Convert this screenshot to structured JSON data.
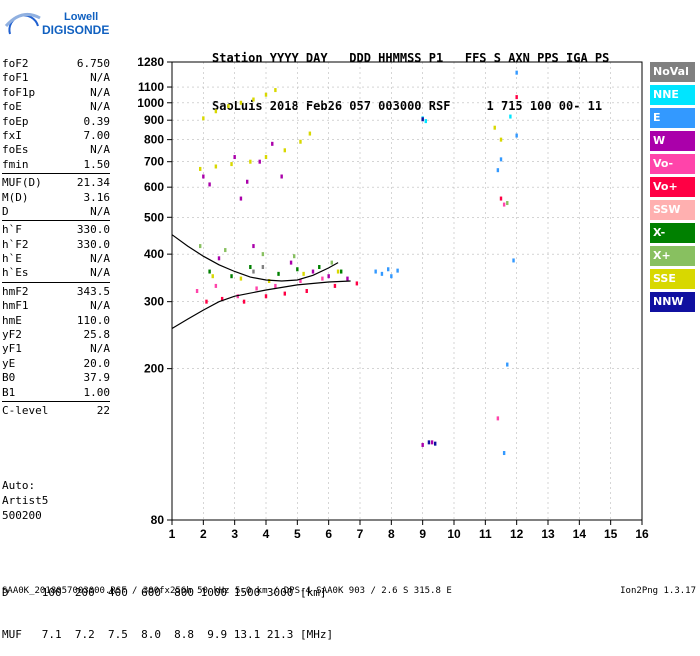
{
  "logo": {
    "top": "Lowell",
    "bottom": "DIGISONDE"
  },
  "header": {
    "line1": "Station YYYY DAY   DDD HHMMSS P1   FFS S AXN PPS IGA PS",
    "line2": "SaoLuis 2018 Feb26 057 003000 RSF     1 715 100 00- 11"
  },
  "params": [
    [
      {
        "k": "foF2",
        "v": "6.750"
      },
      {
        "k": "foF1",
        "v": "N/A"
      },
      {
        "k": "foF1p",
        "v": "N/A"
      },
      {
        "k": "foE",
        "v": "N/A"
      },
      {
        "k": "foEp",
        "v": "0.39"
      },
      {
        "k": "fxI",
        "v": "7.00"
      },
      {
        "k": "foEs",
        "v": "N/A"
      },
      {
        "k": "fmin",
        "v": "1.50"
      }
    ],
    [
      {
        "k": "MUF(D)",
        "v": "21.34"
      },
      {
        "k": "M(D)",
        "v": "3.16"
      },
      {
        "k": "D",
        "v": "N/A"
      }
    ],
    [
      {
        "k": "h`F",
        "v": "330.0"
      },
      {
        "k": "h`F2",
        "v": "330.0"
      },
      {
        "k": "h`E",
        "v": "N/A"
      },
      {
        "k": "h`Es",
        "v": "N/A"
      }
    ],
    [
      {
        "k": "hmF2",
        "v": "343.5"
      },
      {
        "k": "hmF1",
        "v": "N/A"
      },
      {
        "k": "hmE",
        "v": "110.0"
      },
      {
        "k": "yF2",
        "v": "25.8"
      },
      {
        "k": "yF1",
        "v": "N/A"
      },
      {
        "k": "yE",
        "v": "20.0"
      },
      {
        "k": "B0",
        "v": "37.9"
      },
      {
        "k": "B1",
        "v": "1.00"
      }
    ],
    [
      {
        "k": "C-level",
        "v": "22"
      }
    ]
  ],
  "auto": {
    "l1": "Auto:",
    "l2": "Artist5",
    "l3": "500200"
  },
  "legend": [
    {
      "label": "NoVal",
      "bg": "#808080",
      "fg": "#ffffff"
    },
    {
      "label": "NNE",
      "bg": "#00e5ff",
      "fg": "#ffffff"
    },
    {
      "label": "E",
      "bg": "#3399ff",
      "fg": "#ffffff"
    },
    {
      "label": "W",
      "bg": "#aa00aa",
      "fg": "#ffffff"
    },
    {
      "label": "Vo-",
      "bg": "#ff44aa",
      "fg": "#ffffff"
    },
    {
      "label": "Vo+",
      "bg": "#ff0044",
      "fg": "#ffffff"
    },
    {
      "label": "SSW",
      "bg": "#ffb0b0",
      "fg": "#ffffff"
    },
    {
      "label": "X-",
      "bg": "#008000",
      "fg": "#ffffff"
    },
    {
      "label": "X+",
      "bg": "#88c060",
      "fg": "#ffffff"
    },
    {
      "label": "SSE",
      "bg": "#d8d800",
      "fg": "#ffffff"
    },
    {
      "label": "NNW",
      "bg": "#1010a0",
      "fg": "#ffffff"
    }
  ],
  "muf": {
    "l1": "D     100  200  400  600  800 1000 1500 3000 [km]",
    "l2": "MUF   7.1  7.2  7.5  8.0  8.8  9.9 13.1 21.3 [MHz]"
  },
  "footer": {
    "left": "SAA0K_2018057003000.RSF / 300fx256h 50 kHz 5.0 km / DPS-4 SAA0K 903 / 2.6 S 315.8 E",
    "right": "Ion2Png 1.3.17"
  },
  "chart_data": {
    "type": "scatter",
    "x_ticks": [
      1,
      2,
      3,
      4,
      5,
      6,
      7,
      8,
      9,
      10,
      11,
      12,
      13,
      14,
      15,
      16
    ],
    "y_ticks": [
      80,
      200,
      300,
      400,
      500,
      600,
      700,
      800,
      900,
      1000,
      1100,
      1280
    ],
    "xlim": [
      1,
      16
    ],
    "yscale": "log",
    "ylim": [
      80,
      1280
    ],
    "grid": true,
    "series": [
      {
        "name": "NoVal",
        "color": "#808080",
        "points": [
          [
            3.6,
            360
          ],
          [
            3.9,
            370
          ]
        ]
      },
      {
        "name": "NNE",
        "color": "#00e5ff",
        "points": [
          [
            9.0,
            910
          ],
          [
            9.1,
            895
          ],
          [
            11.8,
            920
          ]
        ]
      },
      {
        "name": "E",
        "color": "#3399ff",
        "points": [
          [
            7.5,
            360
          ],
          [
            7.7,
            355
          ],
          [
            7.9,
            365
          ],
          [
            8.0,
            350
          ],
          [
            8.2,
            362
          ],
          [
            11.5,
            710
          ],
          [
            11.4,
            665
          ],
          [
            12.0,
            1200
          ],
          [
            12.0,
            820
          ],
          [
            11.9,
            385
          ],
          [
            11.7,
            205
          ],
          [
            11.6,
            120
          ]
        ]
      },
      {
        "name": "W",
        "color": "#aa00aa",
        "points": [
          [
            2.0,
            640
          ],
          [
            2.2,
            610
          ],
          [
            3.0,
            720
          ],
          [
            3.2,
            560
          ],
          [
            3.4,
            620
          ],
          [
            3.8,
            700
          ],
          [
            4.2,
            780
          ],
          [
            4.5,
            640
          ],
          [
            2.5,
            390
          ],
          [
            3.6,
            420
          ],
          [
            4.8,
            380
          ],
          [
            5.5,
            360
          ],
          [
            6.0,
            350
          ],
          [
            6.6,
            345
          ],
          [
            9.0,
            126
          ],
          [
            9.3,
            128
          ]
        ]
      },
      {
        "name": "Vo-",
        "color": "#ff44aa",
        "points": [
          [
            1.8,
            320
          ],
          [
            2.4,
            330
          ],
          [
            3.1,
            310
          ],
          [
            3.7,
            325
          ],
          [
            4.3,
            330
          ],
          [
            5.1,
            340
          ],
          [
            5.8,
            345
          ],
          [
            11.4,
            148
          ],
          [
            11.6,
            540
          ]
        ]
      },
      {
        "name": "Vo+",
        "color": "#ff0044",
        "points": [
          [
            2.1,
            300
          ],
          [
            2.6,
            305
          ],
          [
            3.3,
            300
          ],
          [
            4.0,
            310
          ],
          [
            4.6,
            315
          ],
          [
            5.3,
            320
          ],
          [
            6.2,
            330
          ],
          [
            6.9,
            335
          ],
          [
            12.0,
            1035
          ],
          [
            11.5,
            560
          ]
        ]
      },
      {
        "name": "X-",
        "color": "#008000",
        "points": [
          [
            2.2,
            360
          ],
          [
            2.9,
            350
          ],
          [
            3.5,
            370
          ],
          [
            4.4,
            355
          ],
          [
            5.0,
            365
          ],
          [
            5.7,
            370
          ],
          [
            6.4,
            360
          ]
        ]
      },
      {
        "name": "X+",
        "color": "#88c060",
        "points": [
          [
            1.9,
            420
          ],
          [
            2.7,
            410
          ],
          [
            3.9,
            400
          ],
          [
            4.9,
            395
          ],
          [
            6.1,
            380
          ],
          [
            11.7,
            545
          ]
        ]
      },
      {
        "name": "SSE",
        "color": "#d8d800",
        "points": [
          [
            2.0,
            910
          ],
          [
            2.4,
            950
          ],
          [
            2.8,
            980
          ],
          [
            3.2,
            1000
          ],
          [
            3.6,
            1020
          ],
          [
            4.0,
            1050
          ],
          [
            4.3,
            1080
          ],
          [
            1.9,
            670
          ],
          [
            2.4,
            680
          ],
          [
            2.9,
            690
          ],
          [
            3.5,
            700
          ],
          [
            4.0,
            720
          ],
          [
            4.6,
            750
          ],
          [
            5.1,
            790
          ],
          [
            5.4,
            830
          ],
          [
            2.3,
            350
          ],
          [
            3.2,
            345
          ],
          [
            4.1,
            340
          ],
          [
            5.2,
            355
          ],
          [
            6.3,
            360
          ],
          [
            11.3,
            860
          ],
          [
            11.5,
            800
          ]
        ]
      },
      {
        "name": "NNW",
        "color": "#1010a0",
        "points": [
          [
            9.0,
            905
          ],
          [
            9.2,
            128
          ],
          [
            9.4,
            127
          ]
        ]
      }
    ],
    "curves": [
      {
        "name": "",
        "color": "#000000",
        "points": [
          [
            1.0,
            255
          ],
          [
            1.5,
            270
          ],
          [
            2.0,
            285
          ],
          [
            2.5,
            300
          ],
          [
            3.0,
            310
          ],
          [
            4.0,
            322
          ],
          [
            5.0,
            332
          ],
          [
            6.0,
            338
          ],
          [
            6.7,
            340
          ]
        ]
      },
      {
        "name": "",
        "color": "#000000",
        "points": [
          [
            1.0,
            450
          ],
          [
            1.5,
            420
          ],
          [
            2.0,
            395
          ],
          [
            2.5,
            375
          ],
          [
            3.0,
            360
          ],
          [
            3.5,
            348
          ],
          [
            4.0,
            342
          ],
          [
            4.5,
            340
          ],
          [
            5.0,
            342
          ],
          [
            5.5,
            352
          ],
          [
            6.0,
            368
          ],
          [
            6.3,
            380
          ]
        ]
      }
    ]
  }
}
